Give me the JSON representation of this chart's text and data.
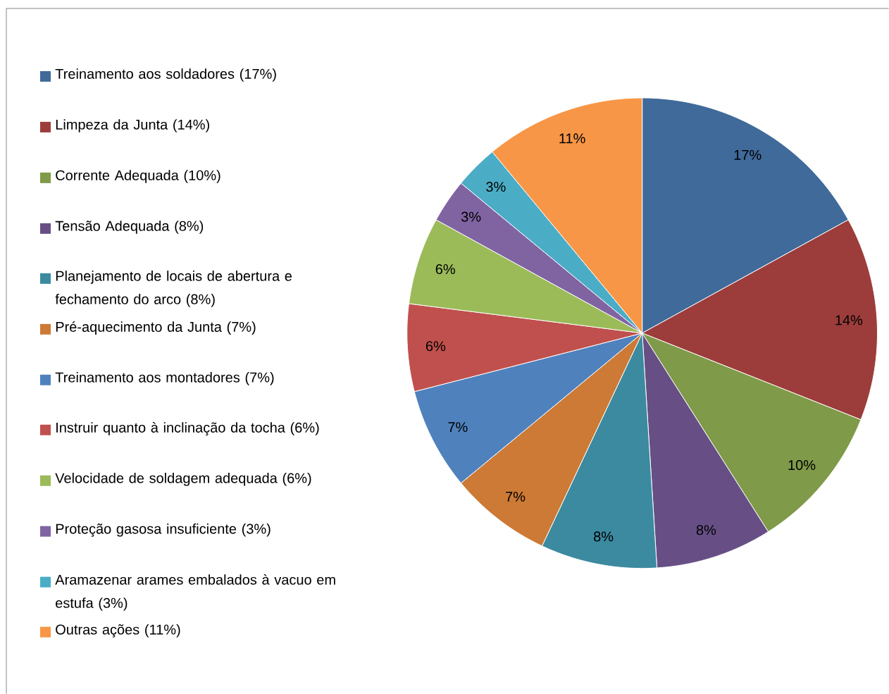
{
  "chart_data": {
    "type": "pie",
    "categories": [
      "Treinamento aos soldadores (17%)",
      "Limpeza da Junta (14%)",
      "Corrente Adequada (10%)",
      "Tensão Adequada (8%)",
      "Planejamento de locais de abertura e fechamento do arco (8%)",
      "Pré-aquecimento da Junta (7%)",
      "Treinamento aos montadores (7%)",
      "Instruir quanto à inclinação da tocha (6%)",
      "Velocidade de soldagem adequada (6%)",
      "Proteção gasosa insuficiente (3%)",
      "Aramazenar arames embalados à vacuo em estufa (3%)",
      "Outras ações (11%)"
    ],
    "values": [
      17,
      14,
      10,
      8,
      8,
      7,
      7,
      6,
      6,
      3,
      3,
      11
    ],
    "value_labels": [
      "17%",
      "14%",
      "10%",
      "8%",
      "8%",
      "7%",
      "7%",
      "6%",
      "6%",
      "3%",
      "3%",
      "11%"
    ],
    "colors": [
      "#3f6a9a",
      "#9c3d3b",
      "#7f9a48",
      "#674f86",
      "#3b8aa0",
      "#cc7a35",
      "#4f81bd",
      "#c0504d",
      "#9bbb59",
      "#8064a2",
      "#4bacc6",
      "#f79646"
    ],
    "legend": "left"
  }
}
